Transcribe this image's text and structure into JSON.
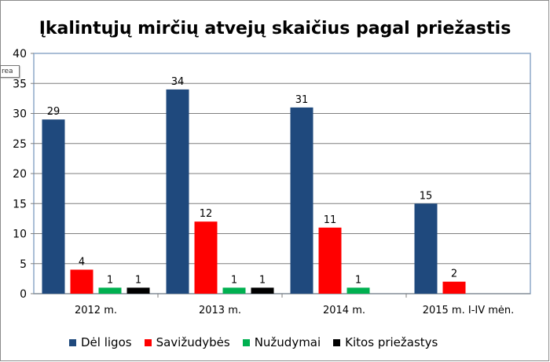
{
  "chart_data": {
    "type": "bar",
    "title": "Įkalintųjų mirčių atvejų skaičius pagal priežastis",
    "categories": [
      "2012 m.",
      "2013 m.",
      "2014 m.",
      "2015 m. I-IV mėn."
    ],
    "series": [
      {
        "name": "Dėl ligos",
        "color": "#1f497d",
        "values": [
          29,
          34,
          31,
          15
        ]
      },
      {
        "name": "Savižudybės",
        "color": "#ff0000",
        "values": [
          4,
          12,
          11,
          2
        ]
      },
      {
        "name": "Nužudymai",
        "color": "#00b050",
        "values": [
          1,
          1,
          1,
          null
        ]
      },
      {
        "name": "Kitos priežastys",
        "color": "#000000",
        "values": [
          1,
          1,
          null,
          null
        ]
      }
    ],
    "ylim": [
      0,
      40
    ],
    "yticks": [
      0,
      5,
      10,
      15,
      20,
      25,
      30,
      35,
      40
    ],
    "grid": true,
    "legend_position": "bottom"
  },
  "tooltip_text": "rea"
}
